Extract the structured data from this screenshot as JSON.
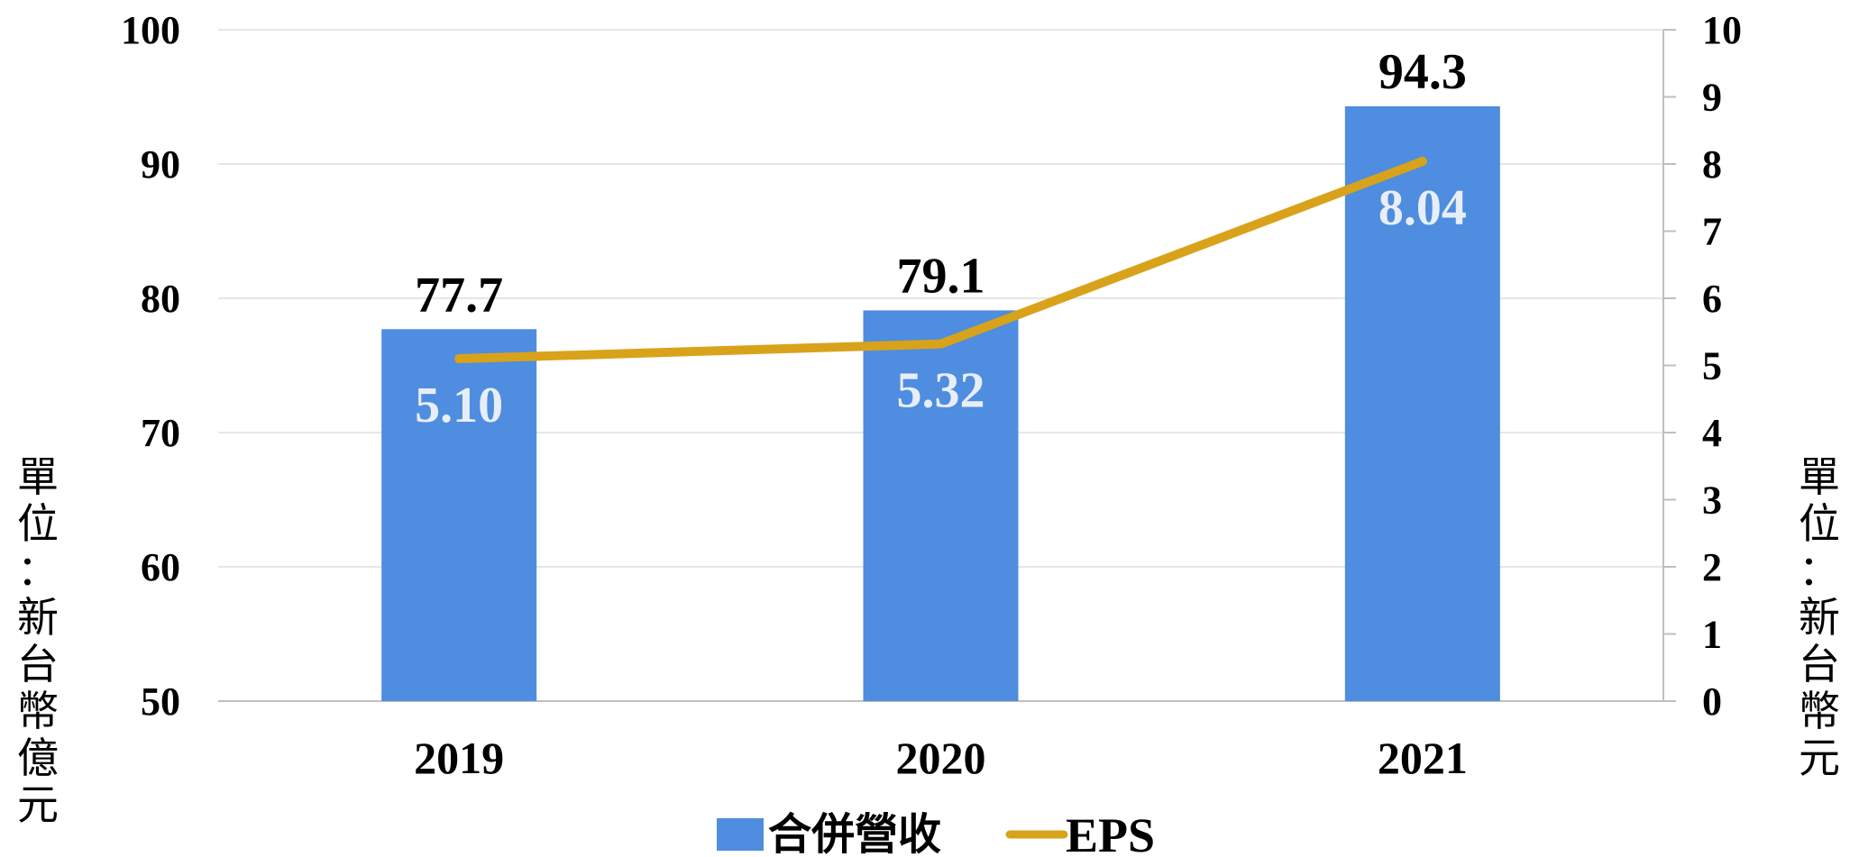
{
  "chart_data": {
    "type": "bar",
    "categories": [
      "2019",
      "2020",
      "2021"
    ],
    "series": [
      {
        "name": "合併營收",
        "type": "bar",
        "axis": "left",
        "values": [
          77.7,
          79.1,
          94.3
        ],
        "labels": [
          "77.7",
          "79.1",
          "94.3"
        ],
        "color": "#4e8ddf"
      },
      {
        "name": "EPS",
        "type": "line",
        "axis": "right",
        "values": [
          5.1,
          5.32,
          8.04
        ],
        "labels": [
          "5.10",
          "5.32",
          "8.04"
        ],
        "color": "#d9a21b"
      }
    ],
    "ylim": [
      50,
      100
    ],
    "yticks": [
      "50",
      "60",
      "70",
      "80",
      "90",
      "100"
    ],
    "y2lim": [
      0,
      10
    ],
    "y2ticks": [
      "0",
      "1",
      "2",
      "3",
      "4",
      "5",
      "6",
      "7",
      "8",
      "9",
      "10"
    ],
    "ylabel": "單位：新台幣億元",
    "y2label": "單位：新台幣元",
    "grid": true,
    "legend": "bottom"
  }
}
